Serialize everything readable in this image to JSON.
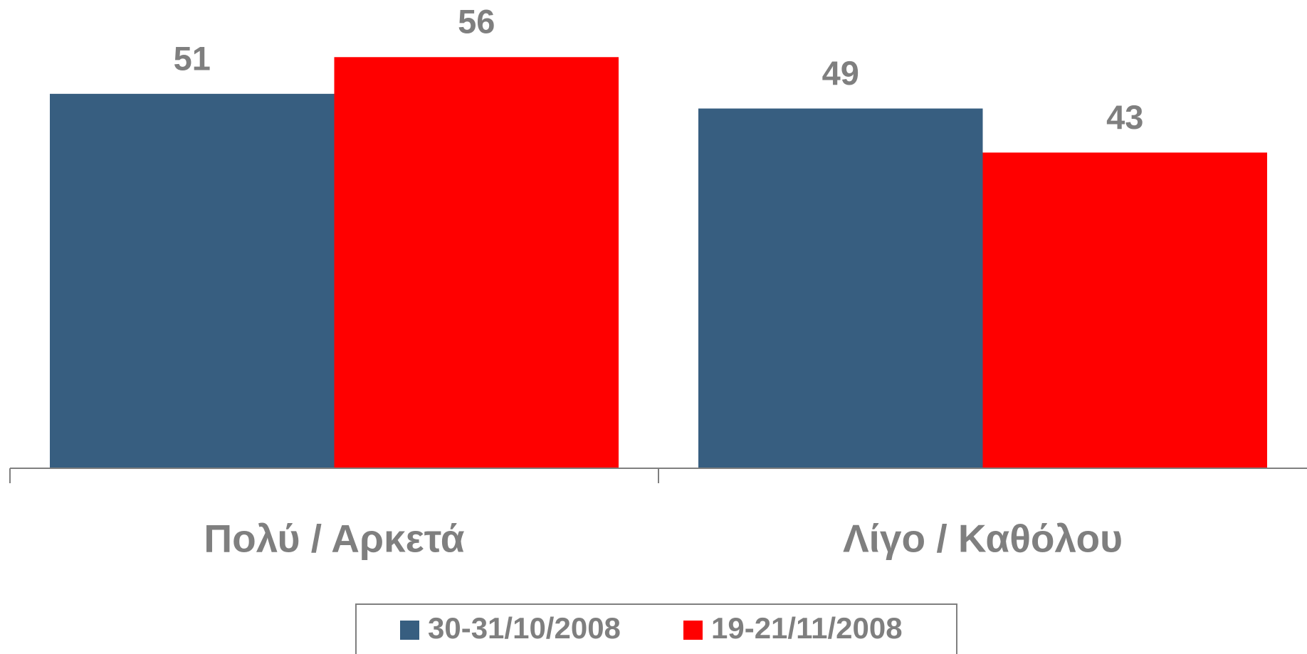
{
  "chart_data": {
    "type": "bar",
    "categories": [
      "Πολύ / Αρκετά",
      "Λίγο / Καθόλου"
    ],
    "series": [
      {
        "name": "30-31/10/2008",
        "color": "#375e80",
        "values": [
          51,
          49
        ]
      },
      {
        "name": "19-21/11/2008",
        "color": "#ff0000",
        "values": [
          56,
          43
        ]
      }
    ],
    "ylim": [
      0,
      60
    ],
    "legend": "bottom"
  }
}
